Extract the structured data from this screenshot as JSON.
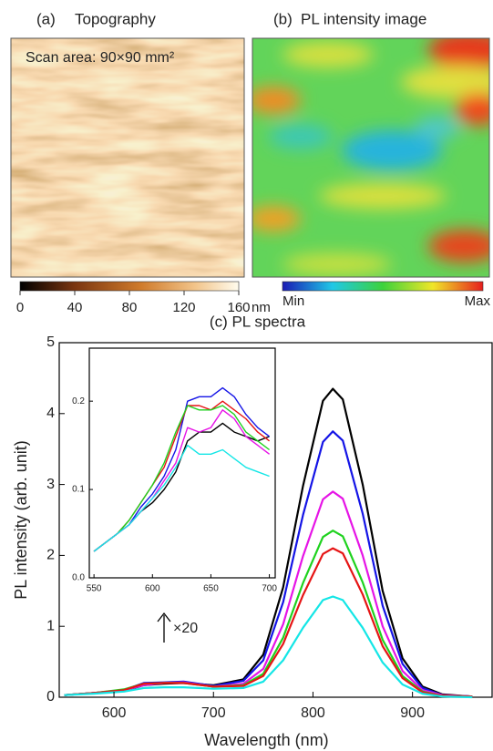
{
  "topography": {
    "label": "(a)",
    "title": "Topography",
    "annotation": "Scan area: 90×90 mm²",
    "colorbar_ticks": [
      0,
      40,
      80,
      120,
      160
    ],
    "colorbar_unit": "nm"
  },
  "pl_image": {
    "label": "(b)",
    "title": "PL intensity image",
    "colorbar_min": "Min",
    "colorbar_max": "Max"
  },
  "chart_data": [
    {
      "type": "line",
      "title": "(c) PL spectra",
      "xlabel": "Wavelength (nm)",
      "ylabel": "PL intensity (arb. unit)",
      "annotation": "×20",
      "x": [
        550,
        580,
        610,
        630,
        650,
        670,
        700,
        730,
        750,
        770,
        790,
        810,
        820,
        830,
        850,
        870,
        890,
        910,
        930,
        960
      ],
      "xlim": [
        545,
        980
      ],
      "ylim": [
        0,
        5
      ],
      "xticks": [
        600,
        700,
        800,
        900
      ],
      "yticks": [
        0,
        1,
        2,
        3,
        4,
        5
      ],
      "series": [
        {
          "color": "#000000",
          "values": [
            0.03,
            0.06,
            0.09,
            0.17,
            0.19,
            0.2,
            0.17,
            0.25,
            0.6,
            1.55,
            2.98,
            4.18,
            4.35,
            4.2,
            3.0,
            1.5,
            0.55,
            0.15,
            0.04,
            0.01
          ]
        },
        {
          "color": "#1414e6",
          "values": [
            0.03,
            0.06,
            0.1,
            0.2,
            0.21,
            0.22,
            0.16,
            0.23,
            0.52,
            1.34,
            2.57,
            3.6,
            3.75,
            3.62,
            2.59,
            1.29,
            0.47,
            0.13,
            0.03,
            0.01
          ]
        },
        {
          "color": "#e614e6",
          "values": [
            0.03,
            0.06,
            0.1,
            0.17,
            0.2,
            0.21,
            0.15,
            0.19,
            0.4,
            1.03,
            1.99,
            2.79,
            2.9,
            2.8,
            2.0,
            1.0,
            0.37,
            0.1,
            0.03,
            0.01
          ]
        },
        {
          "color": "#1ed21e",
          "values": [
            0.03,
            0.06,
            0.11,
            0.19,
            0.2,
            0.2,
            0.15,
            0.17,
            0.33,
            0.84,
            1.61,
            2.26,
            2.35,
            2.27,
            1.62,
            0.81,
            0.3,
            0.08,
            0.02,
            0.01
          ]
        },
        {
          "color": "#e61414",
          "values": [
            0.03,
            0.06,
            0.1,
            0.19,
            0.2,
            0.2,
            0.15,
            0.16,
            0.3,
            0.75,
            1.44,
            2.02,
            2.1,
            2.03,
            1.45,
            0.72,
            0.27,
            0.07,
            0.02,
            0.01
          ]
        },
        {
          "color": "#14e6e6",
          "values": [
            0.03,
            0.05,
            0.08,
            0.13,
            0.14,
            0.14,
            0.12,
            0.13,
            0.22,
            0.52,
            0.98,
            1.37,
            1.42,
            1.37,
            0.98,
            0.49,
            0.18,
            0.05,
            0.01,
            0.0
          ]
        }
      ]
    },
    {
      "type": "line",
      "x": [
        550,
        560,
        570,
        580,
        590,
        600,
        610,
        620,
        630,
        640,
        650,
        660,
        670,
        680,
        690,
        700
      ],
      "xlim": [
        546,
        705
      ],
      "ylim": [
        0,
        0.26
      ],
      "xticks": [
        550,
        600,
        650,
        700
      ],
      "yticks": [
        {
          "value": 0,
          "label": "0.0"
        },
        {
          "value": 0.1,
          "label": "0.1"
        },
        {
          "value": 0.2,
          "label": "0.2"
        }
      ],
      "series": [
        {
          "color": "#000000",
          "values": [
            0.03,
            0.04,
            0.05,
            0.06,
            0.075,
            0.085,
            0.1,
            0.12,
            0.155,
            0.165,
            0.165,
            0.175,
            0.165,
            0.16,
            0.155,
            0.16
          ]
        },
        {
          "color": "#1414e6",
          "values": [
            0.03,
            0.04,
            0.05,
            0.06,
            0.08,
            0.095,
            0.115,
            0.145,
            0.2,
            0.205,
            0.205,
            0.215,
            0.205,
            0.185,
            0.17,
            0.16
          ]
        },
        {
          "color": "#e61414",
          "values": [
            0.03,
            0.04,
            0.05,
            0.065,
            0.085,
            0.105,
            0.125,
            0.16,
            0.195,
            0.195,
            0.19,
            0.2,
            0.19,
            0.18,
            0.165,
            0.155
          ]
        },
        {
          "color": "#1ed21e",
          "values": [
            0.03,
            0.04,
            0.05,
            0.065,
            0.085,
            0.105,
            0.13,
            0.165,
            0.195,
            0.19,
            0.19,
            0.195,
            0.185,
            0.165,
            0.155,
            0.145
          ]
        },
        {
          "color": "#e614e6",
          "values": [
            0.03,
            0.04,
            0.05,
            0.06,
            0.075,
            0.09,
            0.11,
            0.13,
            0.17,
            0.165,
            0.17,
            0.19,
            0.18,
            0.16,
            0.15,
            0.14
          ]
        },
        {
          "color": "#14e6e6",
          "values": [
            0.03,
            0.04,
            0.05,
            0.06,
            0.075,
            0.09,
            0.105,
            0.125,
            0.15,
            0.14,
            0.14,
            0.145,
            0.135,
            0.125,
            0.12,
            0.115
          ]
        }
      ]
    }
  ]
}
